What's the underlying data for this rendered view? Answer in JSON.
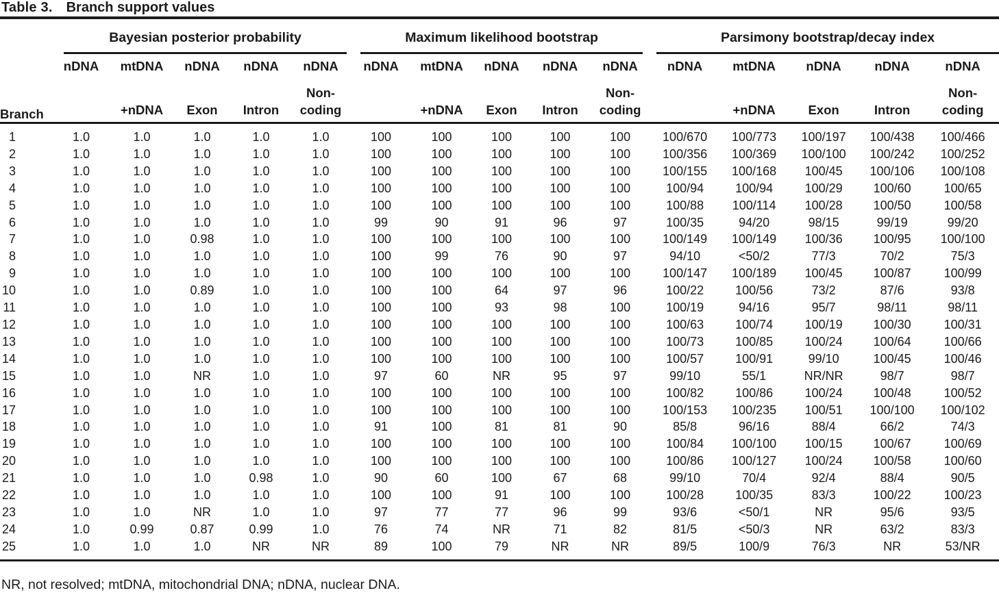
{
  "title": {
    "label": "Table 3.",
    "caption": "Branch support values"
  },
  "footnote": "NR, not resolved; mtDNA, mitochondrial DNA; nDNA, nuclear DNA.",
  "table": {
    "row_header": "Branch",
    "groups": [
      {
        "label": "Bayesian posterior probability",
        "sub_columns": [
          {
            "top": "nDNA",
            "bottom": ""
          },
          {
            "top": "mtDNA",
            "bottom": "+nDNA"
          },
          {
            "top": "nDNA",
            "bottom": "Exon"
          },
          {
            "top": "nDNA",
            "bottom": "Intron"
          },
          {
            "top": "nDNA",
            "bottom": "Non-\ncoding"
          }
        ]
      },
      {
        "label": "Maximum likelihood bootstrap",
        "sub_columns": [
          {
            "top": "nDNA",
            "bottom": ""
          },
          {
            "top": "mtDNA",
            "bottom": "+nDNA"
          },
          {
            "top": "nDNA",
            "bottom": "Exon"
          },
          {
            "top": "nDNA",
            "bottom": "Intron"
          },
          {
            "top": "nDNA",
            "bottom": "Non-\ncoding"
          }
        ]
      },
      {
        "label": "Parsimony bootstrap/decay index",
        "sub_columns": [
          {
            "top": "nDNA",
            "bottom": ""
          },
          {
            "top": "mtDNA",
            "bottom": "+nDNA"
          },
          {
            "top": "nDNA",
            "bottom": "Exon"
          },
          {
            "top": "nDNA",
            "bottom": "Intron"
          },
          {
            "top": "nDNA",
            "bottom": "Non-\ncoding"
          }
        ]
      }
    ],
    "rows": [
      {
        "branch": "1",
        "bayesian": [
          "1.0",
          "1.0",
          "1.0",
          "1.0",
          "1.0"
        ],
        "ml": [
          "100",
          "100",
          "100",
          "100",
          "100"
        ],
        "parsimony": [
          "100/670",
          "100/773",
          "100/197",
          "100/438",
          "100/466"
        ]
      },
      {
        "branch": "2",
        "bayesian": [
          "1.0",
          "1.0",
          "1.0",
          "1.0",
          "1.0"
        ],
        "ml": [
          "100",
          "100",
          "100",
          "100",
          "100"
        ],
        "parsimony": [
          "100/356",
          "100/369",
          "100/100",
          "100/242",
          "100/252"
        ]
      },
      {
        "branch": "3",
        "bayesian": [
          "1.0",
          "1.0",
          "1.0",
          "1.0",
          "1.0"
        ],
        "ml": [
          "100",
          "100",
          "100",
          "100",
          "100"
        ],
        "parsimony": [
          "100/155",
          "100/168",
          "100/45",
          "100/106",
          "100/108"
        ]
      },
      {
        "branch": "4",
        "bayesian": [
          "1.0",
          "1.0",
          "1.0",
          "1.0",
          "1.0"
        ],
        "ml": [
          "100",
          "100",
          "100",
          "100",
          "100"
        ],
        "parsimony": [
          "100/94",
          "100/94",
          "100/29",
          "100/60",
          "100/65"
        ]
      },
      {
        "branch": "5",
        "bayesian": [
          "1.0",
          "1.0",
          "1.0",
          "1.0",
          "1.0"
        ],
        "ml": [
          "100",
          "100",
          "100",
          "100",
          "100"
        ],
        "parsimony": [
          "100/88",
          "100/114",
          "100/28",
          "100/50",
          "100/58"
        ]
      },
      {
        "branch": "6",
        "bayesian": [
          "1.0",
          "1.0",
          "1.0",
          "1.0",
          "1.0"
        ],
        "ml": [
          "99",
          "90",
          "91",
          "96",
          "97"
        ],
        "parsimony": [
          "100/35",
          "94/20",
          "98/15",
          "99/19",
          "99/20"
        ]
      },
      {
        "branch": "7",
        "bayesian": [
          "1.0",
          "1.0",
          "0.98",
          "1.0",
          "1.0"
        ],
        "ml": [
          "100",
          "100",
          "100",
          "100",
          "100"
        ],
        "parsimony": [
          "100/149",
          "100/149",
          "100/36",
          "100/95",
          "100/100"
        ]
      },
      {
        "branch": "8",
        "bayesian": [
          "1.0",
          "1.0",
          "1.0",
          "1.0",
          "1.0"
        ],
        "ml": [
          "100",
          "99",
          "76",
          "90",
          "97"
        ],
        "parsimony": [
          "94/10",
          "<50/2",
          "77/3",
          "70/2",
          "75/3"
        ]
      },
      {
        "branch": "9",
        "bayesian": [
          "1.0",
          "1.0",
          "1.0",
          "1.0",
          "1.0"
        ],
        "ml": [
          "100",
          "100",
          "100",
          "100",
          "100"
        ],
        "parsimony": [
          "100/147",
          "100/189",
          "100/45",
          "100/87",
          "100/99"
        ]
      },
      {
        "branch": "10",
        "bayesian": [
          "1.0",
          "1.0",
          "0.89",
          "1.0",
          "1.0"
        ],
        "ml": [
          "100",
          "100",
          "64",
          "97",
          "96"
        ],
        "parsimony": [
          "100/22",
          "100/56",
          "73/2",
          "87/6",
          "93/8"
        ]
      },
      {
        "branch": "11",
        "bayesian": [
          "1.0",
          "1.0",
          "1.0",
          "1.0",
          "1.0"
        ],
        "ml": [
          "100",
          "100",
          "93",
          "98",
          "100"
        ],
        "parsimony": [
          "100/19",
          "94/16",
          "95/7",
          "98/11",
          "98/11"
        ]
      },
      {
        "branch": "12",
        "bayesian": [
          "1.0",
          "1.0",
          "1.0",
          "1.0",
          "1.0"
        ],
        "ml": [
          "100",
          "100",
          "100",
          "100",
          "100"
        ],
        "parsimony": [
          "100/63",
          "100/74",
          "100/19",
          "100/30",
          "100/31"
        ]
      },
      {
        "branch": "13",
        "bayesian": [
          "1.0",
          "1.0",
          "1.0",
          "1.0",
          "1.0"
        ],
        "ml": [
          "100",
          "100",
          "100",
          "100",
          "100"
        ],
        "parsimony": [
          "100/73",
          "100/85",
          "100/24",
          "100/64",
          "100/66"
        ]
      },
      {
        "branch": "14",
        "bayesian": [
          "1.0",
          "1.0",
          "1.0",
          "1.0",
          "1.0"
        ],
        "ml": [
          "100",
          "100",
          "100",
          "100",
          "100"
        ],
        "parsimony": [
          "100/57",
          "100/91",
          "99/10",
          "100/45",
          "100/46"
        ]
      },
      {
        "branch": "15",
        "bayesian": [
          "1.0",
          "1.0",
          "NR",
          "1.0",
          "1.0"
        ],
        "ml": [
          "97",
          "60",
          "NR",
          "95",
          "97"
        ],
        "parsimony": [
          "99/10",
          "55/1",
          "NR/NR",
          "98/7",
          "98/7"
        ]
      },
      {
        "branch": "16",
        "bayesian": [
          "1.0",
          "1.0",
          "1.0",
          "1.0",
          "1.0"
        ],
        "ml": [
          "100",
          "100",
          "100",
          "100",
          "100"
        ],
        "parsimony": [
          "100/82",
          "100/86",
          "100/24",
          "100/48",
          "100/52"
        ]
      },
      {
        "branch": "17",
        "bayesian": [
          "1.0",
          "1.0",
          "1.0",
          "1.0",
          "1.0"
        ],
        "ml": [
          "100",
          "100",
          "100",
          "100",
          "100"
        ],
        "parsimony": [
          "100/153",
          "100/235",
          "100/51",
          "100/100",
          "100/102"
        ]
      },
      {
        "branch": "18",
        "bayesian": [
          "1.0",
          "1.0",
          "1.0",
          "1.0",
          "1.0"
        ],
        "ml": [
          "91",
          "100",
          "81",
          "81",
          "90"
        ],
        "parsimony": [
          "85/8",
          "96/16",
          "88/4",
          "66/2",
          "74/3"
        ]
      },
      {
        "branch": "19",
        "bayesian": [
          "1.0",
          "1.0",
          "1.0",
          "1.0",
          "1.0"
        ],
        "ml": [
          "100",
          "100",
          "100",
          "100",
          "100"
        ],
        "parsimony": [
          "100/84",
          "100/100",
          "100/15",
          "100/67",
          "100/69"
        ]
      },
      {
        "branch": "20",
        "bayesian": [
          "1.0",
          "1.0",
          "1.0",
          "1.0",
          "1.0"
        ],
        "ml": [
          "100",
          "100",
          "100",
          "100",
          "100"
        ],
        "parsimony": [
          "100/86",
          "100/127",
          "100/24",
          "100/58",
          "100/60"
        ]
      },
      {
        "branch": "21",
        "bayesian": [
          "1.0",
          "1.0",
          "1.0",
          "0.98",
          "1.0"
        ],
        "ml": [
          "90",
          "60",
          "100",
          "67",
          "68"
        ],
        "parsimony": [
          "99/10",
          "70/4",
          "92/4",
          "88/4",
          "90/5"
        ]
      },
      {
        "branch": "22",
        "bayesian": [
          "1.0",
          "1.0",
          "1.0",
          "1.0",
          "1.0"
        ],
        "ml": [
          "100",
          "100",
          "91",
          "100",
          "100"
        ],
        "parsimony": [
          "100/28",
          "100/35",
          "83/3",
          "100/22",
          "100/23"
        ]
      },
      {
        "branch": "23",
        "bayesian": [
          "1.0",
          "1.0",
          "NR",
          "1.0",
          "1.0"
        ],
        "ml": [
          "97",
          "77",
          "77",
          "96",
          "99"
        ],
        "parsimony": [
          "93/6",
          "<50/1",
          "NR",
          "95/6",
          "93/5"
        ]
      },
      {
        "branch": "24",
        "bayesian": [
          "1.0",
          "0.99",
          "0.87",
          "0.99",
          "1.0"
        ],
        "ml": [
          "76",
          "74",
          "NR",
          "71",
          "82"
        ],
        "parsimony": [
          "81/5",
          "<50/3",
          "NR",
          "63/2",
          "83/3"
        ]
      },
      {
        "branch": "25",
        "bayesian": [
          "1.0",
          "1.0",
          "1.0",
          "NR",
          "NR"
        ],
        "ml": [
          "89",
          "100",
          "79",
          "NR",
          "NR"
        ],
        "parsimony": [
          "89/5",
          "100/9",
          "76/3",
          "NR",
          "53/NR"
        ]
      }
    ]
  }
}
